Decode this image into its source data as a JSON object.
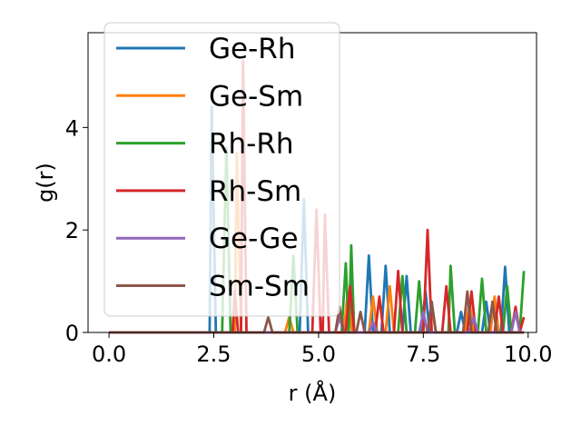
{
  "chart_data": {
    "type": "line",
    "xlabel": "r (Å)",
    "ylabel": "g(r)",
    "xlim": [
      -0.5,
      10.2
    ],
    "ylim": [
      0,
      5.85
    ],
    "xticks": [
      0.0,
      2.5,
      5.0,
      7.5,
      10.0
    ],
    "xtick_labels": [
      "0.0",
      "2.5",
      "5.0",
      "7.5",
      "10.0"
    ],
    "yticks": [
      0,
      2,
      4
    ],
    "ytick_labels": [
      "0",
      "2",
      "4"
    ],
    "grid": false,
    "legend_placement": "upper-left",
    "series": [
      {
        "name": "Ge-Rh",
        "color": "#1f77b4",
        "points": [
          [
            0,
            0
          ],
          [
            2.4,
            0
          ],
          [
            2.45,
            4.4
          ],
          [
            2.55,
            0
          ],
          [
            4.55,
            0
          ],
          [
            4.65,
            2.6
          ],
          [
            4.75,
            0
          ],
          [
            6.1,
            0
          ],
          [
            6.2,
            1.5
          ],
          [
            6.3,
            0
          ],
          [
            6.5,
            0
          ],
          [
            6.6,
            1.3
          ],
          [
            6.7,
            0
          ],
          [
            7.0,
            0
          ],
          [
            7.1,
            1.1
          ],
          [
            7.2,
            0
          ],
          [
            7.45,
            0
          ],
          [
            7.55,
            0.8
          ],
          [
            7.65,
            0
          ],
          [
            8.3,
            0
          ],
          [
            8.4,
            0.4
          ],
          [
            8.5,
            0
          ],
          [
            8.9,
            0
          ],
          [
            9.0,
            0.6
          ],
          [
            9.1,
            0
          ],
          [
            9.35,
            0
          ],
          [
            9.45,
            1.28
          ],
          [
            9.55,
            0
          ],
          [
            9.9,
            0
          ]
        ]
      },
      {
        "name": "Ge-Sm",
        "color": "#ff7f0e",
        "points": [
          [
            0,
            0
          ],
          [
            3.0,
            0
          ],
          [
            3.05,
            3.5
          ],
          [
            3.15,
            0
          ],
          [
            4.2,
            0
          ],
          [
            4.3,
            0.3
          ],
          [
            4.4,
            0
          ],
          [
            5.6,
            0
          ],
          [
            5.7,
            0.8
          ],
          [
            5.8,
            0
          ],
          [
            6.2,
            0
          ],
          [
            6.3,
            0.7
          ],
          [
            6.4,
            0
          ],
          [
            6.6,
            0
          ],
          [
            6.7,
            0.9
          ],
          [
            6.8,
            0
          ],
          [
            7.6,
            0
          ],
          [
            7.7,
            0.5
          ],
          [
            7.8,
            0
          ],
          [
            8.5,
            0
          ],
          [
            8.6,
            0.6
          ],
          [
            8.7,
            0
          ],
          [
            9.1,
            0
          ],
          [
            9.2,
            0.7
          ],
          [
            9.3,
            0
          ],
          [
            9.9,
            0
          ]
        ]
      },
      {
        "name": "Rh-Rh",
        "color": "#2ca02c",
        "points": [
          [
            0,
            0
          ],
          [
            2.7,
            0
          ],
          [
            2.8,
            3.6
          ],
          [
            2.9,
            0
          ],
          [
            4.3,
            0
          ],
          [
            4.4,
            1.5
          ],
          [
            4.5,
            0
          ],
          [
            5.55,
            0
          ],
          [
            5.65,
            1.35
          ],
          [
            5.72,
            0
          ],
          [
            5.78,
            1.7
          ],
          [
            5.85,
            0
          ],
          [
            6.9,
            0
          ],
          [
            7.0,
            1.1
          ],
          [
            7.1,
            0
          ],
          [
            7.3,
            0
          ],
          [
            7.4,
            1.0
          ],
          [
            7.5,
            0
          ],
          [
            8.1,
            0
          ],
          [
            8.15,
            1.3
          ],
          [
            8.25,
            0
          ],
          [
            8.8,
            0
          ],
          [
            8.9,
            1.05
          ],
          [
            9.0,
            0
          ],
          [
            9.4,
            0
          ],
          [
            9.5,
            0.9
          ],
          [
            9.6,
            0
          ],
          [
            9.8,
            0
          ],
          [
            9.9,
            1.2
          ]
        ]
      },
      {
        "name": "Rh-Sm",
        "color": "#d62728",
        "points": [
          [
            0,
            0
          ],
          [
            2.95,
            0
          ],
          [
            3.0,
            0.8
          ],
          [
            3.08,
            0
          ],
          [
            3.15,
            0
          ],
          [
            3.2,
            5.3
          ],
          [
            3.28,
            0
          ],
          [
            4.85,
            0
          ],
          [
            4.95,
            2.4
          ],
          [
            5.05,
            0
          ],
          [
            5.1,
            0
          ],
          [
            5.15,
            2.3
          ],
          [
            5.25,
            0
          ],
          [
            5.65,
            0
          ],
          [
            5.75,
            0.9
          ],
          [
            5.85,
            0
          ],
          [
            6.35,
            0
          ],
          [
            6.45,
            0.7
          ],
          [
            6.55,
            0
          ],
          [
            6.8,
            0
          ],
          [
            6.9,
            1.2
          ],
          [
            7.0,
            0
          ],
          [
            7.5,
            0
          ],
          [
            7.6,
            2.0
          ],
          [
            7.7,
            0
          ],
          [
            7.95,
            0
          ],
          [
            8.05,
            0.9
          ],
          [
            8.15,
            0
          ],
          [
            8.55,
            0
          ],
          [
            8.65,
            0.8
          ],
          [
            8.75,
            0
          ],
          [
            9.2,
            0
          ],
          [
            9.3,
            0.7
          ],
          [
            9.4,
            0
          ],
          [
            9.6,
            0
          ],
          [
            9.7,
            0.5
          ],
          [
            9.8,
            0
          ],
          [
            9.9,
            0.3
          ]
        ]
      },
      {
        "name": "Ge-Ge",
        "color": "#9467bd",
        "points": [
          [
            0,
            0
          ],
          [
            5.4,
            0
          ],
          [
            5.5,
            0.3
          ],
          [
            5.6,
            0
          ],
          [
            6.2,
            0
          ],
          [
            6.3,
            0.2
          ],
          [
            6.4,
            0
          ],
          [
            7.4,
            0
          ],
          [
            7.5,
            0.4
          ],
          [
            7.6,
            0
          ],
          [
            8.6,
            0
          ],
          [
            8.7,
            0.3
          ],
          [
            8.8,
            0
          ],
          [
            9.6,
            0
          ],
          [
            9.7,
            0.4
          ],
          [
            9.8,
            0
          ],
          [
            9.9,
            0
          ]
        ]
      },
      {
        "name": "Sm-Sm",
        "color": "#8c564b",
        "points": [
          [
            0,
            0
          ],
          [
            3.7,
            0
          ],
          [
            3.8,
            0.3
          ],
          [
            3.9,
            0
          ],
          [
            5.4,
            0
          ],
          [
            5.5,
            0.5
          ],
          [
            5.6,
            0
          ],
          [
            5.9,
            0
          ],
          [
            6.0,
            0.4
          ],
          [
            6.1,
            0
          ],
          [
            7.6,
            0
          ],
          [
            7.7,
            0.6
          ],
          [
            7.8,
            0
          ],
          [
            8.45,
            0
          ],
          [
            8.55,
            0.8
          ],
          [
            8.65,
            0
          ],
          [
            9.05,
            0
          ],
          [
            9.15,
            0.6
          ],
          [
            9.25,
            0
          ],
          [
            9.9,
            0
          ]
        ]
      }
    ]
  }
}
